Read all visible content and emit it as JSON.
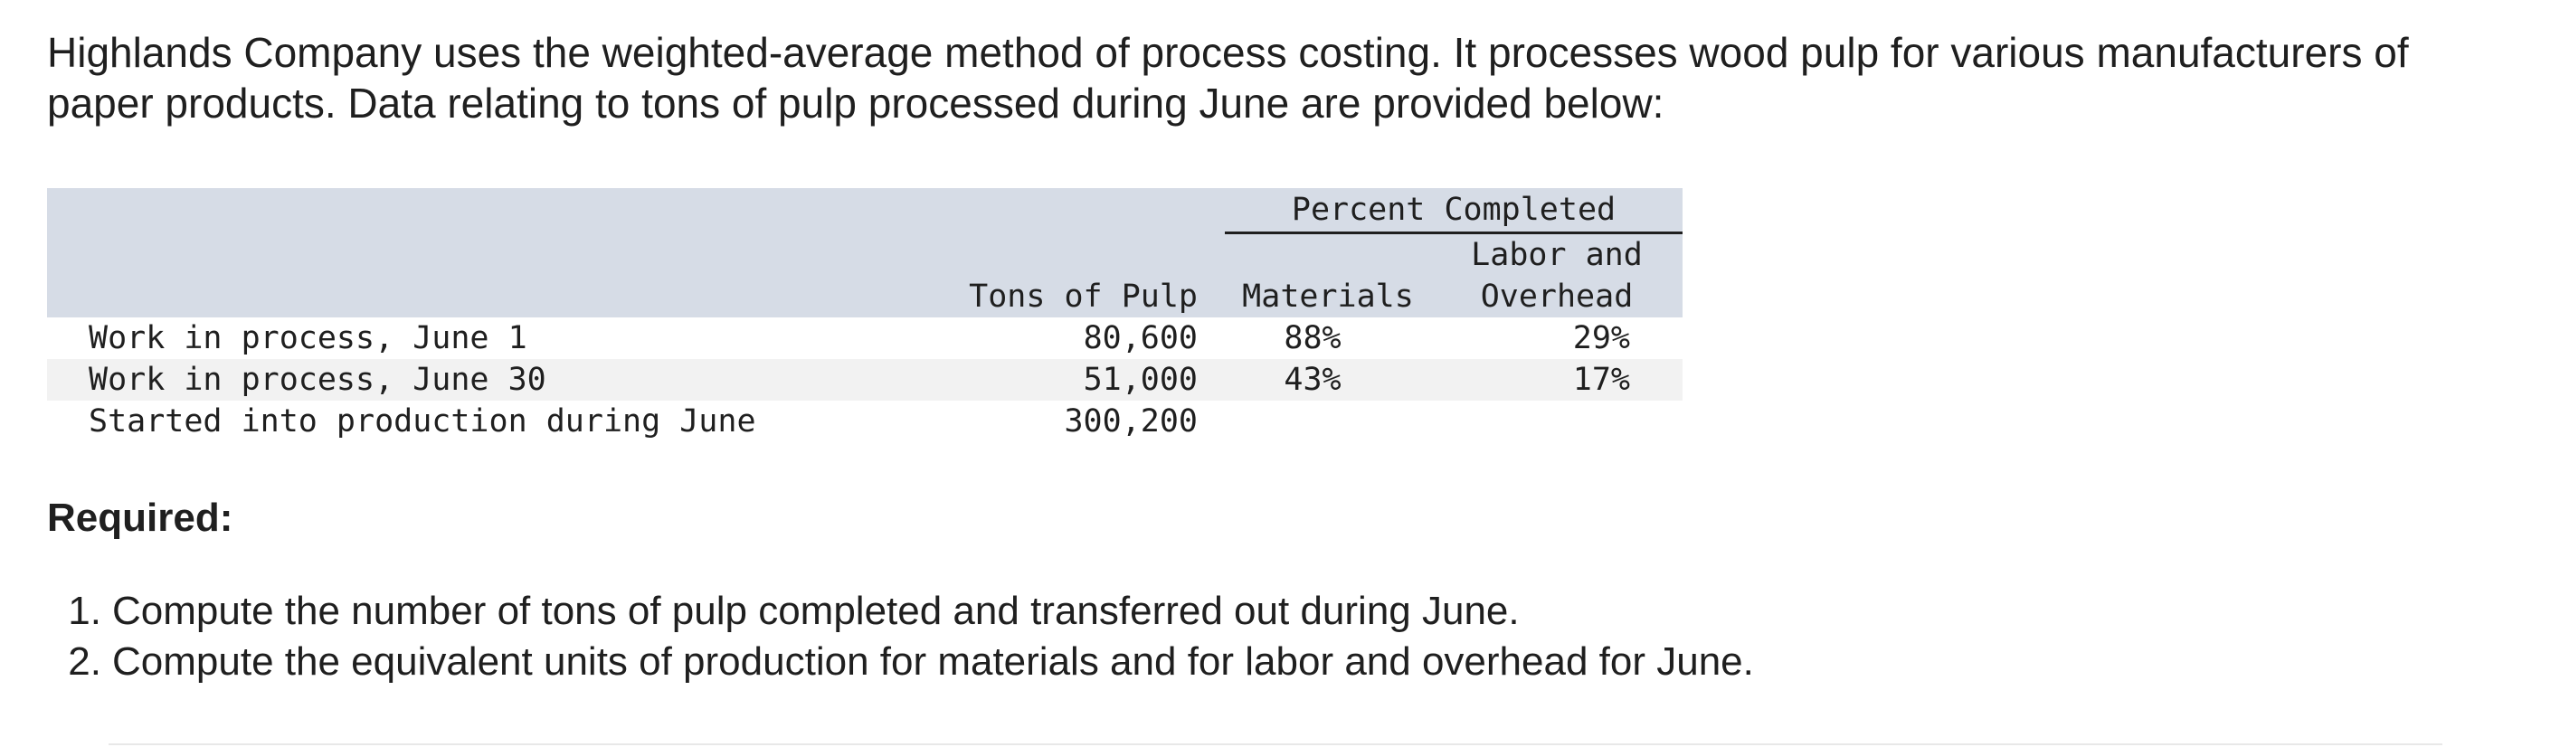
{
  "intro": "Highlands Company uses the weighted-average method of process costing. It processes wood pulp for various manufacturers of paper products. Data relating to tons of pulp processed during June are provided below:",
  "table": {
    "group_header": "Percent Completed",
    "col_tons": "Tons of Pulp",
    "col_materials": "Materials",
    "col_labor_line1": "Labor and",
    "col_labor_line2": "Overhead",
    "rows": [
      {
        "label": "Work in process, June 1",
        "tons": "80,600",
        "materials": "88%",
        "labor": "29%"
      },
      {
        "label": "Work in process, June 30",
        "tons": "51,000",
        "materials": "43%",
        "labor": "17%"
      },
      {
        "label": "Started into production during June",
        "tons": "300,200",
        "materials": "",
        "labor": ""
      }
    ]
  },
  "required_heading": "Required:",
  "requirements": [
    {
      "num": "1.",
      "text": "Compute the number of tons of pulp completed and transferred out during June."
    },
    {
      "num": "2.",
      "text": "Compute the equivalent units of production for materials and for labor and overhead for June."
    }
  ]
}
